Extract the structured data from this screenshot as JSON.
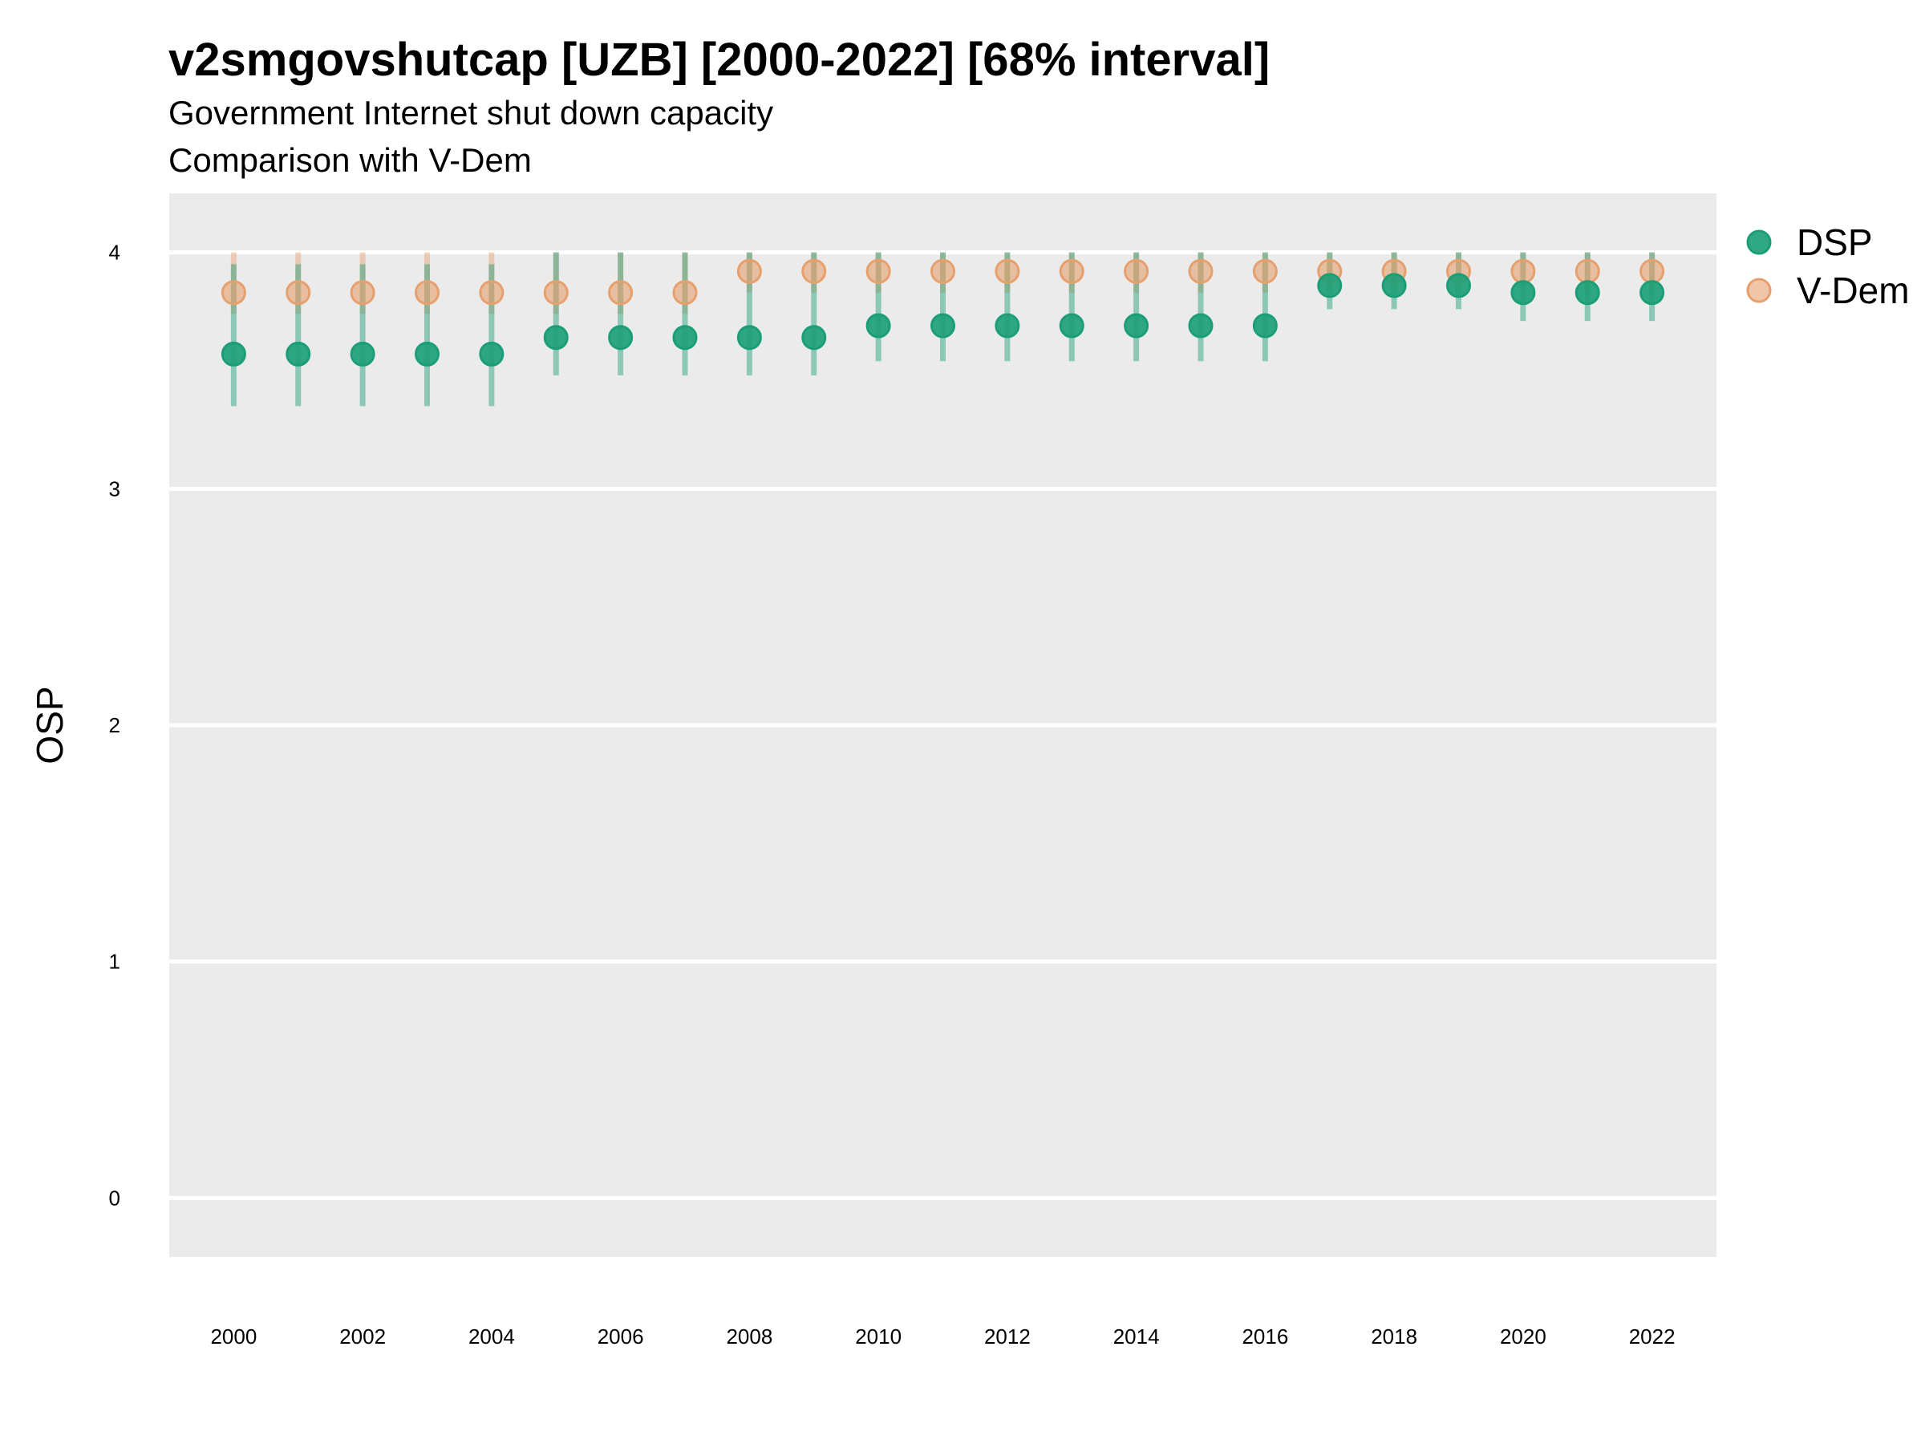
{
  "chart_data": {
    "type": "scatter",
    "title": "v2smgovshutcap [UZB] [2000-2022] [68% interval]",
    "subtitle": "Government Internet shut down capacity",
    "subtitle2": "Comparison with V-Dem",
    "xlabel": "",
    "ylabel": "OSP",
    "ylim": [
      -0.25,
      4.25
    ],
    "yticks": [
      0,
      1,
      2,
      3,
      4
    ],
    "xlim": [
      1999,
      2023
    ],
    "xticks": [
      2000,
      2002,
      2004,
      2006,
      2008,
      2010,
      2012,
      2014,
      2016,
      2018,
      2020,
      2022
    ],
    "grid": true,
    "legend_position": "right",
    "x": [
      2000,
      2001,
      2002,
      2003,
      2004,
      2005,
      2006,
      2007,
      2008,
      2009,
      2010,
      2011,
      2012,
      2013,
      2014,
      2015,
      2016,
      2017,
      2018,
      2019,
      2020,
      2021,
      2022
    ],
    "series": [
      {
        "name": "V-Dem",
        "color": "#E6A06E",
        "values": [
          3.83,
          3.83,
          3.83,
          3.83,
          3.83,
          3.83,
          3.83,
          3.83,
          3.92,
          3.92,
          3.92,
          3.92,
          3.92,
          3.92,
          3.92,
          3.92,
          3.92,
          3.92,
          3.92,
          3.92,
          3.92,
          3.92,
          3.92
        ],
        "lower": [
          3.74,
          3.74,
          3.74,
          3.74,
          3.74,
          3.74,
          3.74,
          3.74,
          3.83,
          3.83,
          3.83,
          3.83,
          3.83,
          3.83,
          3.83,
          3.83,
          3.83,
          3.83,
          3.83,
          3.83,
          3.83,
          3.83,
          3.83
        ],
        "upper": [
          4.0,
          4.0,
          4.0,
          4.0,
          4.0,
          4.0,
          4.0,
          4.0,
          4.0,
          4.0,
          4.0,
          4.0,
          4.0,
          4.0,
          4.0,
          4.0,
          4.0,
          4.0,
          4.0,
          4.0,
          4.0,
          4.0,
          4.0
        ]
      },
      {
        "name": "DSP",
        "color": "#1B9E77",
        "values": [
          3.57,
          3.57,
          3.57,
          3.57,
          3.57,
          3.64,
          3.64,
          3.64,
          3.64,
          3.64,
          3.69,
          3.69,
          3.69,
          3.69,
          3.69,
          3.69,
          3.69,
          3.86,
          3.86,
          3.86,
          3.83,
          3.83,
          3.83
        ],
        "lower": [
          3.35,
          3.35,
          3.35,
          3.35,
          3.35,
          3.48,
          3.48,
          3.48,
          3.48,
          3.48,
          3.54,
          3.54,
          3.54,
          3.54,
          3.54,
          3.54,
          3.54,
          3.76,
          3.76,
          3.76,
          3.71,
          3.71,
          3.71
        ],
        "upper": [
          3.95,
          3.95,
          3.95,
          3.95,
          3.95,
          4.0,
          4.0,
          4.0,
          4.0,
          4.0,
          4.0,
          4.0,
          4.0,
          4.0,
          4.0,
          4.0,
          4.0,
          4.0,
          4.0,
          4.0,
          4.0,
          4.0,
          4.0
        ]
      }
    ]
  }
}
